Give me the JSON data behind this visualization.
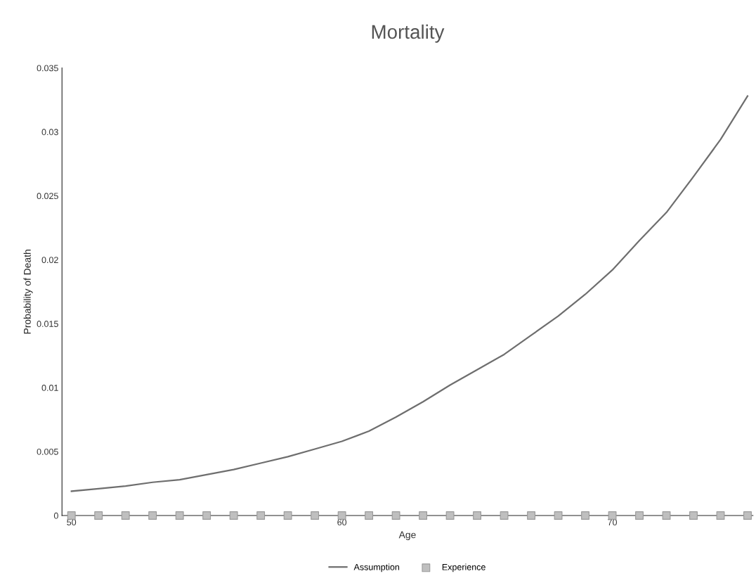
{
  "chart_data": {
    "type": "line",
    "title": "Mortality",
    "xlabel": "Age",
    "ylabel": "Probability of Death",
    "x": [
      50,
      51,
      52,
      53,
      54,
      55,
      56,
      57,
      58,
      59,
      60,
      61,
      62,
      63,
      64,
      65,
      66,
      67,
      68,
      69,
      70,
      71,
      72,
      73,
      74,
      75
    ],
    "series": [
      {
        "name": "Assumption",
        "color": "#6e6e6e",
        "marker": "none",
        "values": [
          0.0019,
          0.0021,
          0.0023,
          0.0026,
          0.0028,
          0.0032,
          0.0036,
          0.0041,
          0.0046,
          0.0052,
          0.0058,
          0.0066,
          0.0077,
          0.0089,
          0.0102,
          0.0114,
          0.0126,
          0.0141,
          0.0156,
          0.0173,
          0.0192,
          0.0215,
          0.0237,
          0.0265,
          0.0294,
          0.0328
        ]
      },
      {
        "name": "Experience",
        "type": "scatter",
        "color": "#bfbfbf",
        "marker": "square",
        "values": [
          0,
          0,
          0,
          0,
          0,
          0,
          0,
          0,
          0,
          0,
          0,
          0,
          0,
          0,
          0,
          0,
          0,
          0,
          0,
          0,
          0,
          0,
          0,
          0,
          0,
          0
        ]
      }
    ],
    "xlim": [
      49.65,
      75.2
    ],
    "xticks": [
      50,
      60,
      70
    ],
    "ylim": [
      0,
      0.035
    ],
    "yticks": [
      0,
      0.005,
      0.01,
      0.015,
      0.02,
      0.025,
      0.03,
      0.035
    ],
    "grid": false,
    "legend": "bottom"
  }
}
